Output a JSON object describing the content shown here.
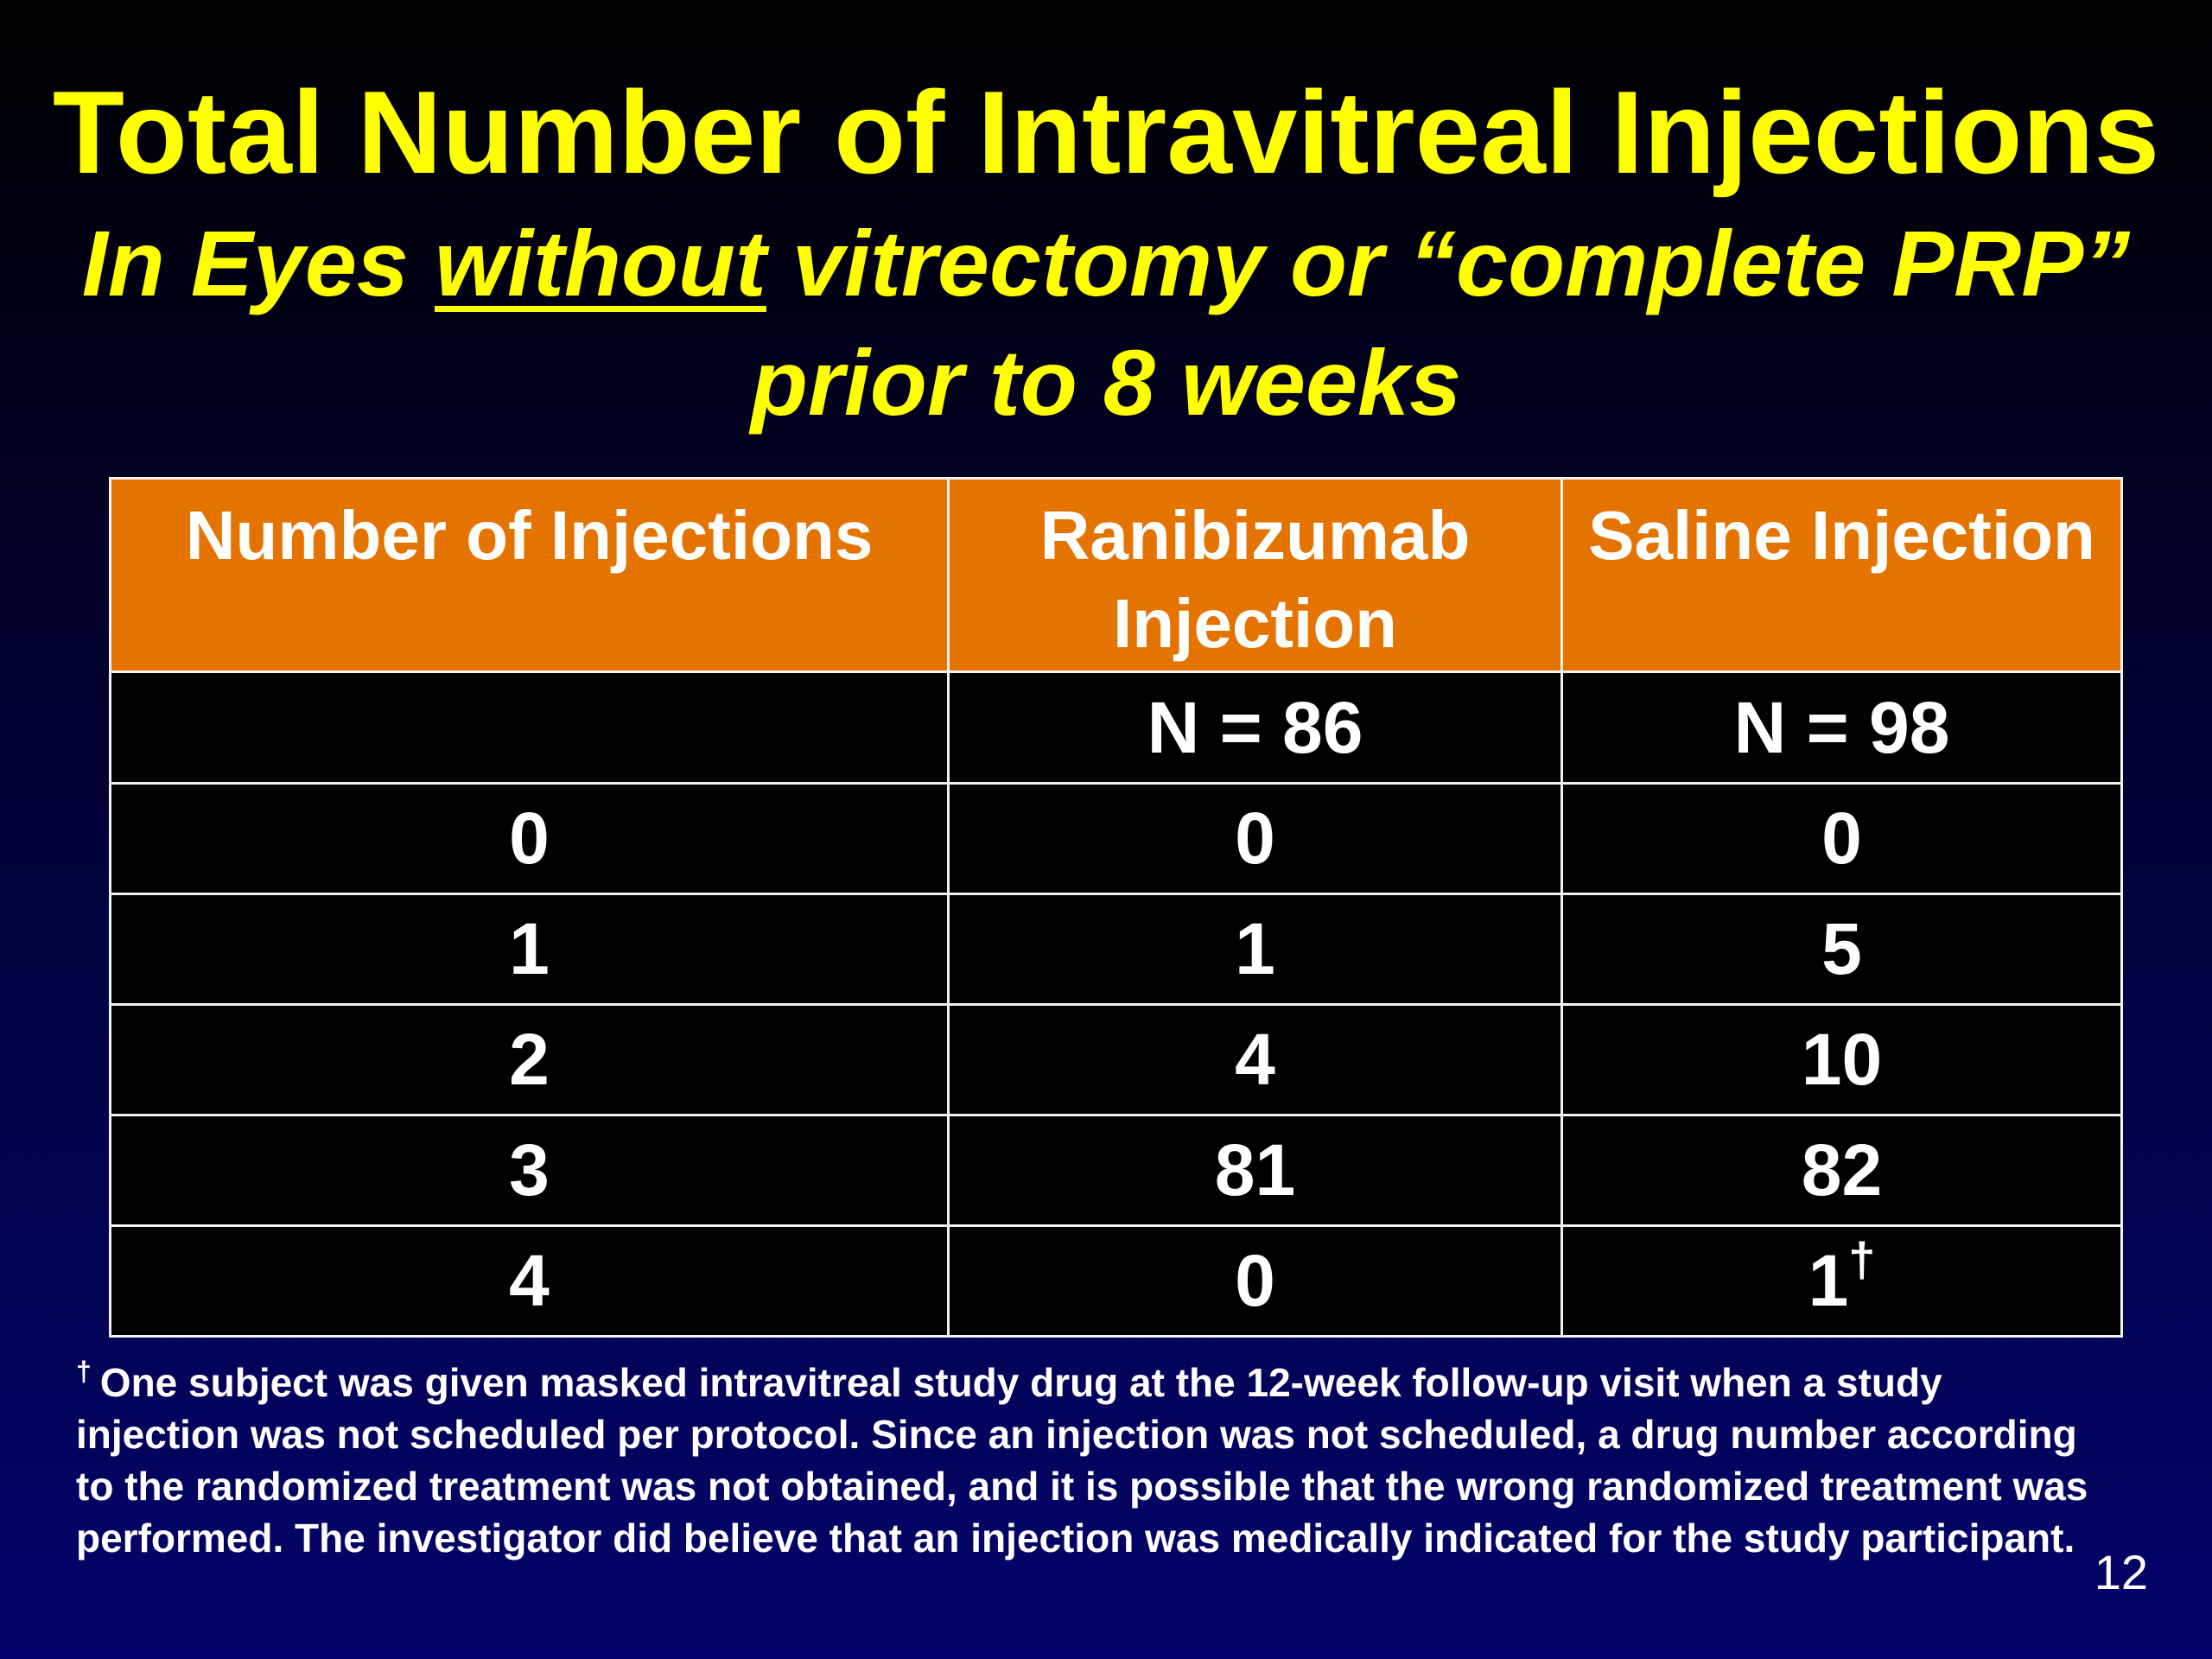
{
  "slide": {
    "title": "Total Number of Intravitreal Injections",
    "subtitle_line1_before": "In Eyes ",
    "subtitle_line1_underlined": "without",
    "subtitle_line1_after": " vitrectomy or “complete PRP”",
    "subtitle_line2": "prior to 8 weeks",
    "page_number": "12",
    "colors": {
      "background_top": "#000000",
      "background_bottom": "#03036b",
      "title": "#ffff00",
      "header_fill": "#e57300"
    }
  },
  "table": {
    "headers": [
      "Number of Injections",
      "Ranibizumab Injection",
      "Saline Injection"
    ],
    "n_row": [
      "",
      "N = 86",
      "N = 98"
    ],
    "rows": [
      [
        "0",
        "0",
        "0"
      ],
      [
        "1",
        "1",
        "5"
      ],
      [
        "2",
        "4",
        "10"
      ],
      [
        "3",
        "81",
        "82"
      ],
      [
        "4",
        "0",
        "1"
      ]
    ],
    "dagger": "†"
  },
  "footnote": {
    "marker": "†",
    "text": "One subject was given masked intravitreal study drug at the 12-week follow-up visit when a study injection was not scheduled per protocol.  Since an injection was not scheduled, a drug number according to the randomized treatment was not obtained, and it is possible that the wrong randomized treatment was performed.  The investigator did believe that an injection was medically indicated for the study participant."
  }
}
